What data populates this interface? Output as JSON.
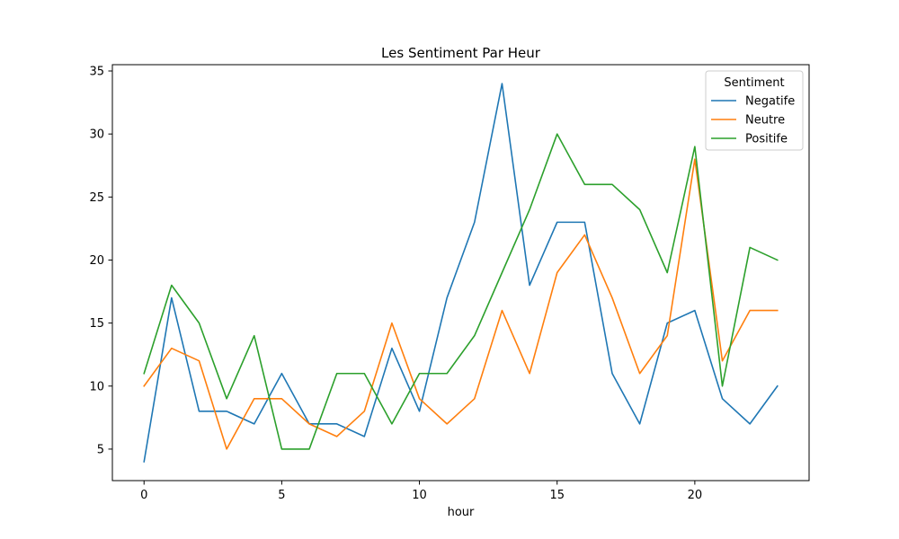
{
  "chart_data": {
    "type": "line",
    "title": "Les Sentiment Par Heur",
    "xlabel": "hour",
    "ylabel": "",
    "xlim": [
      -1.15,
      24.15
    ],
    "ylim": [
      2.5,
      35.5
    ],
    "x_ticks": [
      0,
      5,
      10,
      15,
      20
    ],
    "y_ticks": [
      5,
      10,
      15,
      20,
      25,
      30,
      35
    ],
    "grid": false,
    "legend": {
      "title": "Sentiment",
      "placement": "top-right"
    },
    "x": [
      0,
      1,
      2,
      3,
      4,
      5,
      6,
      7,
      8,
      9,
      10,
      11,
      12,
      13,
      14,
      15,
      16,
      17,
      18,
      19,
      20,
      21,
      22,
      23
    ],
    "series": [
      {
        "name": "Negatife",
        "color": "#1f77b4",
        "values": [
          4,
          17,
          8,
          8,
          7,
          11,
          7,
          7,
          6,
          13,
          8,
          17,
          23,
          34,
          18,
          23,
          23,
          11,
          7,
          15,
          16,
          9,
          7,
          10
        ]
      },
      {
        "name": "Neutre",
        "color": "#ff7f0e",
        "values": [
          10,
          13,
          12,
          5,
          9,
          9,
          7,
          6,
          8,
          15,
          9,
          7,
          9,
          16,
          11,
          19,
          22,
          17,
          11,
          14,
          28,
          12,
          16,
          16
        ]
      },
      {
        "name": "Positife",
        "color": "#2ca02c",
        "values": [
          11,
          18,
          15,
          9,
          14,
          5,
          5,
          11,
          11,
          7,
          11,
          11,
          14,
          19,
          24,
          30,
          26,
          26,
          24,
          19,
          29,
          10,
          21,
          20
        ]
      }
    ]
  }
}
